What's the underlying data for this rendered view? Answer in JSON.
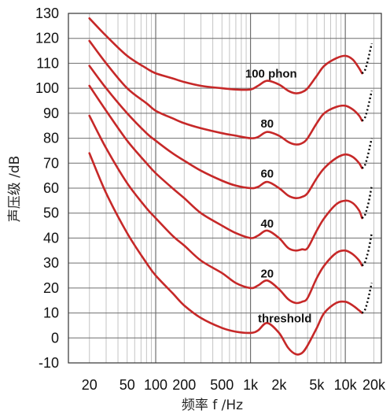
{
  "chart_data": {
    "type": "line",
    "title": "",
    "xlabel": "频率 f /Hz",
    "ylabel": "声压级 /dB",
    "x_scale": "log",
    "xlim": [
      12,
      24000
    ],
    "ylim": [
      -10,
      130
    ],
    "grid": true,
    "y_ticks": [
      -10,
      0,
      10,
      20,
      30,
      40,
      50,
      60,
      70,
      80,
      90,
      100,
      110,
      120,
      130
    ],
    "x_ticks": [
      {
        "value": 20,
        "label": "20"
      },
      {
        "value": 50,
        "label": "50"
      },
      {
        "value": 100,
        "label": "100"
      },
      {
        "value": 200,
        "label": "200"
      },
      {
        "value": 500,
        "label": "500"
      },
      {
        "value": 1000,
        "label": "1k"
      },
      {
        "value": 2000,
        "label": "2k"
      },
      {
        "value": 5000,
        "label": "5k"
      },
      {
        "value": 10000,
        "label": "10k"
      },
      {
        "value": 20000,
        "label": "20k"
      }
    ],
    "series": [
      {
        "name": "threshold",
        "label_at": [
          2300,
          5
        ],
        "x": [
          20,
          30,
          50,
          80,
          100,
          150,
          200,
          300,
          500,
          700,
          1000,
          1200,
          1500,
          2000,
          2500,
          3000,
          3500,
          4000,
          5000,
          6000,
          8000,
          10000,
          12000,
          14000,
          15000
        ],
        "y": [
          74,
          58,
          42,
          30,
          25,
          18,
          13,
          8,
          4,
          2.5,
          2,
          3,
          6,
          2,
          -4,
          -6.5,
          -6,
          -3,
          4,
          10,
          14,
          14.5,
          13,
          11,
          10
        ],
        "extension": {
          "x": [
            15000,
            16000,
            17000,
            18000,
            19000
          ],
          "y": [
            10,
            11,
            14,
            18,
            22
          ]
        }
      },
      {
        "name": "20",
        "label_at": [
          1500,
          23
        ],
        "x": [
          20,
          30,
          50,
          80,
          100,
          150,
          200,
          300,
          500,
          700,
          1000,
          1200,
          1500,
          2000,
          2500,
          3000,
          3500,
          4000,
          5000,
          6000,
          8000,
          10000,
          12000,
          14000,
          15000
        ],
        "y": [
          89,
          76,
          62,
          52,
          48,
          41,
          37,
          31,
          26,
          22,
          20,
          21,
          23,
          19.5,
          15.5,
          14,
          14.5,
          16,
          24,
          29,
          34,
          35,
          33.5,
          31,
          29
        ],
        "extension": {
          "x": [
            15000,
            16000,
            17000,
            18000,
            19000
          ],
          "y": [
            29,
            30,
            33,
            37,
            42
          ]
        }
      },
      {
        "name": "40",
        "label_at": [
          1500,
          43
        ],
        "x": [
          20,
          30,
          50,
          80,
          100,
          150,
          200,
          300,
          500,
          700,
          1000,
          1200,
          1500,
          2000,
          2500,
          3000,
          3500,
          4000,
          5000,
          6000,
          8000,
          10000,
          12000,
          14000,
          15000
        ],
        "y": [
          101,
          91,
          79,
          70,
          66,
          60,
          56,
          50,
          45,
          42,
          40,
          41,
          43,
          40,
          36,
          35,
          35.5,
          36,
          43,
          48,
          53.5,
          55,
          54,
          51,
          48
        ],
        "extension": {
          "x": [
            15000,
            16000,
            17000,
            18000,
            19000
          ],
          "y": [
            48,
            49,
            52,
            56,
            61
          ]
        }
      },
      {
        "name": "60",
        "label_at": [
          1500,
          63
        ],
        "x": [
          20,
          30,
          50,
          80,
          100,
          150,
          200,
          300,
          500,
          700,
          1000,
          1200,
          1500,
          2000,
          2500,
          3000,
          3500,
          4000,
          5000,
          6000,
          8000,
          10000,
          12000,
          14000,
          15000
        ],
        "y": [
          109,
          100,
          90,
          82,
          79,
          74,
          71,
          67,
          63,
          61,
          60,
          60.5,
          62.5,
          60,
          57,
          56,
          56.5,
          58,
          64,
          68,
          72,
          73.5,
          72.5,
          70,
          68
        ],
        "extension": {
          "x": [
            15000,
            16000,
            17000,
            18000,
            19000
          ],
          "y": [
            68,
            69,
            72,
            76,
            80
          ]
        }
      },
      {
        "name": "80",
        "label_at": [
          1500,
          83
        ],
        "x": [
          20,
          30,
          50,
          80,
          100,
          150,
          200,
          300,
          500,
          700,
          1000,
          1200,
          1500,
          2000,
          2500,
          3000,
          3500,
          4000,
          5000,
          6000,
          8000,
          10000,
          12000,
          14000,
          15000
        ],
        "y": [
          119,
          110,
          100,
          94,
          91,
          88,
          86,
          84,
          82,
          81,
          80,
          80.5,
          82.5,
          81,
          78.5,
          77.5,
          78,
          80,
          86,
          90,
          92.5,
          93,
          91.5,
          89,
          87
        ],
        "extension": {
          "x": [
            15000,
            16000,
            17000,
            18000,
            19000
          ],
          "y": [
            87,
            88,
            91,
            95,
            99
          ]
        }
      },
      {
        "name": "100 phon",
        "label_at": [
          1650,
          103
        ],
        "x": [
          20,
          30,
          50,
          80,
          100,
          150,
          200,
          300,
          500,
          700,
          1000,
          1200,
          1500,
          2000,
          2500,
          3000,
          3500,
          4000,
          5000,
          6000,
          8000,
          10000,
          12000,
          14000,
          15000
        ],
        "y": [
          128,
          121,
          113,
          108,
          106,
          104,
          102.5,
          101,
          100,
          99.5,
          99.5,
          101,
          103,
          101.5,
          99,
          98,
          98.5,
          100,
          105,
          109,
          112,
          113,
          111.5,
          108,
          106
        ],
        "extension": {
          "x": [
            15000,
            16000,
            17000,
            18000,
            19000
          ],
          "y": [
            106,
            107,
            110,
            114,
            118
          ]
        }
      }
    ]
  },
  "colors": {
    "curve": "#c62828",
    "extension": "#000000",
    "grid_major": "#6f6f6f",
    "grid_minor": "#c4c4c4",
    "frame": "#333333"
  }
}
